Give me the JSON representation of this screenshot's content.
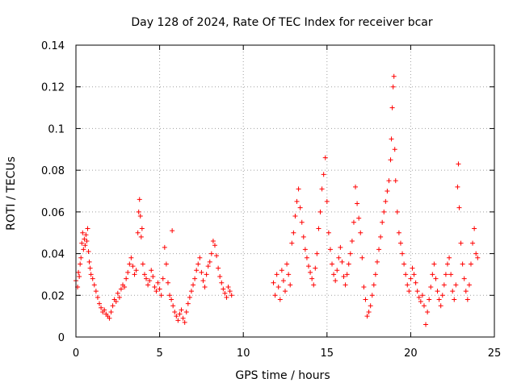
{
  "chart_data": {
    "type": "scatter",
    "title": "Day 128 of 2024, Rate Of TEC Index for receiver bcar",
    "xlabel": "GPS time / hours",
    "ylabel": "ROTI / TECUs",
    "xlim": [
      0,
      25
    ],
    "ylim": [
      0,
      0.14
    ],
    "xticks": [
      0,
      5,
      10,
      15,
      20,
      25
    ],
    "yticks": [
      0,
      0.02,
      0.04,
      0.06,
      0.08,
      0.1,
      0.12,
      0.14
    ],
    "ytick_labels": [
      "0",
      "0.02",
      "0.04",
      "0.06",
      "0.08",
      "0.1",
      "0.12",
      "0.14"
    ],
    "grid": true,
    "marker": "+",
    "marker_color": "#ff0000",
    "series": [
      {
        "name": "ROTI",
        "points": [
          [
            0.0,
            0.027
          ],
          [
            0.1,
            0.024
          ],
          [
            0.15,
            0.031
          ],
          [
            0.2,
            0.029
          ],
          [
            0.25,
            0.035
          ],
          [
            0.3,
            0.038
          ],
          [
            0.35,
            0.045
          ],
          [
            0.4,
            0.05
          ],
          [
            0.45,
            0.042
          ],
          [
            0.5,
            0.047
          ],
          [
            0.55,
            0.044
          ],
          [
            0.6,
            0.049
          ],
          [
            0.65,
            0.046
          ],
          [
            0.7,
            0.052
          ],
          [
            0.75,
            0.041
          ],
          [
            0.8,
            0.036
          ],
          [
            0.85,
            0.033
          ],
          [
            0.9,
            0.03
          ],
          [
            1.0,
            0.028
          ],
          [
            1.1,
            0.025
          ],
          [
            1.2,
            0.022
          ],
          [
            1.3,
            0.019
          ],
          [
            1.4,
            0.016
          ],
          [
            1.5,
            0.014
          ],
          [
            1.6,
            0.012
          ],
          [
            1.7,
            0.013
          ],
          [
            1.8,
            0.011
          ],
          [
            1.9,
            0.01
          ],
          [
            2.0,
            0.009
          ],
          [
            2.1,
            0.012
          ],
          [
            2.2,
            0.015
          ],
          [
            2.3,
            0.018
          ],
          [
            2.4,
            0.017
          ],
          [
            2.5,
            0.021
          ],
          [
            2.6,
            0.019
          ],
          [
            2.7,
            0.023
          ],
          [
            2.8,
            0.025
          ],
          [
            2.9,
            0.024
          ],
          [
            3.0,
            0.028
          ],
          [
            3.1,
            0.031
          ],
          [
            3.2,
            0.035
          ],
          [
            3.3,
            0.038
          ],
          [
            3.4,
            0.034
          ],
          [
            3.5,
            0.03
          ],
          [
            3.6,
            0.032
          ],
          [
            3.7,
            0.05
          ],
          [
            3.75,
            0.06
          ],
          [
            3.8,
            0.066
          ],
          [
            3.85,
            0.058
          ],
          [
            3.9,
            0.048
          ],
          [
            3.95,
            0.052
          ],
          [
            4.0,
            0.035
          ],
          [
            4.1,
            0.03
          ],
          [
            4.2,
            0.028
          ],
          [
            4.3,
            0.025
          ],
          [
            4.4,
            0.027
          ],
          [
            4.5,
            0.032
          ],
          [
            4.6,
            0.029
          ],
          [
            4.7,
            0.024
          ],
          [
            4.8,
            0.022
          ],
          [
            4.9,
            0.026
          ],
          [
            5.0,
            0.023
          ],
          [
            5.1,
            0.02
          ],
          [
            5.2,
            0.028
          ],
          [
            5.3,
            0.043
          ],
          [
            5.4,
            0.035
          ],
          [
            5.5,
            0.026
          ],
          [
            5.6,
            0.02
          ],
          [
            5.7,
            0.018
          ],
          [
            5.75,
            0.051
          ],
          [
            5.8,
            0.015
          ],
          [
            5.9,
            0.012
          ],
          [
            6.0,
            0.01
          ],
          [
            6.1,
            0.008
          ],
          [
            6.2,
            0.011
          ],
          [
            6.3,
            0.013
          ],
          [
            6.4,
            0.009
          ],
          [
            6.5,
            0.007
          ],
          [
            6.6,
            0.012
          ],
          [
            6.7,
            0.016
          ],
          [
            6.8,
            0.019
          ],
          [
            6.9,
            0.022
          ],
          [
            7.0,
            0.025
          ],
          [
            7.1,
            0.028
          ],
          [
            7.2,
            0.032
          ],
          [
            7.3,
            0.035
          ],
          [
            7.4,
            0.038
          ],
          [
            7.5,
            0.031
          ],
          [
            7.6,
            0.027
          ],
          [
            7.7,
            0.024
          ],
          [
            7.8,
            0.03
          ],
          [
            7.9,
            0.034
          ],
          [
            8.0,
            0.036
          ],
          [
            8.1,
            0.04
          ],
          [
            8.2,
            0.046
          ],
          [
            8.3,
            0.044
          ],
          [
            8.4,
            0.039
          ],
          [
            8.5,
            0.033
          ],
          [
            8.6,
            0.029
          ],
          [
            8.7,
            0.026
          ],
          [
            8.8,
            0.023
          ],
          [
            8.9,
            0.021
          ],
          [
            9.0,
            0.019
          ],
          [
            9.1,
            0.024
          ],
          [
            9.2,
            0.022
          ],
          [
            9.3,
            0.02
          ],
          [
            11.8,
            0.026
          ],
          [
            11.9,
            0.02
          ],
          [
            12.0,
            0.03
          ],
          [
            12.1,
            0.024
          ],
          [
            12.2,
            0.018
          ],
          [
            12.3,
            0.032
          ],
          [
            12.4,
            0.027
          ],
          [
            12.5,
            0.022
          ],
          [
            12.6,
            0.035
          ],
          [
            12.7,
            0.03
          ],
          [
            12.8,
            0.025
          ],
          [
            12.9,
            0.045
          ],
          [
            13.0,
            0.05
          ],
          [
            13.1,
            0.058
          ],
          [
            13.2,
            0.065
          ],
          [
            13.3,
            0.071
          ],
          [
            13.4,
            0.062
          ],
          [
            13.5,
            0.055
          ],
          [
            13.6,
            0.048
          ],
          [
            13.7,
            0.042
          ],
          [
            13.8,
            0.038
          ],
          [
            13.9,
            0.034
          ],
          [
            14.0,
            0.031
          ],
          [
            14.1,
            0.028
          ],
          [
            14.2,
            0.025
          ],
          [
            14.3,
            0.033
          ],
          [
            14.4,
            0.04
          ],
          [
            14.5,
            0.052
          ],
          [
            14.6,
            0.06
          ],
          [
            14.7,
            0.071
          ],
          [
            14.8,
            0.078
          ],
          [
            14.9,
            0.086
          ],
          [
            15.0,
            0.065
          ],
          [
            15.1,
            0.05
          ],
          [
            15.2,
            0.042
          ],
          [
            15.3,
            0.035
          ],
          [
            15.4,
            0.03
          ],
          [
            15.5,
            0.027
          ],
          [
            15.6,
            0.032
          ],
          [
            15.7,
            0.038
          ],
          [
            15.8,
            0.043
          ],
          [
            15.9,
            0.036
          ],
          [
            16.0,
            0.029
          ],
          [
            16.1,
            0.025
          ],
          [
            16.2,
            0.03
          ],
          [
            16.3,
            0.035
          ],
          [
            16.4,
            0.04
          ],
          [
            16.5,
            0.046
          ],
          [
            16.6,
            0.055
          ],
          [
            16.7,
            0.072
          ],
          [
            16.8,
            0.064
          ],
          [
            16.9,
            0.057
          ],
          [
            17.0,
            0.05
          ],
          [
            17.1,
            0.038
          ],
          [
            17.2,
            0.024
          ],
          [
            17.3,
            0.018
          ],
          [
            17.4,
            0.01
          ],
          [
            17.5,
            0.012
          ],
          [
            17.6,
            0.015
          ],
          [
            17.7,
            0.02
          ],
          [
            17.8,
            0.025
          ],
          [
            17.9,
            0.03
          ],
          [
            18.0,
            0.036
          ],
          [
            18.1,
            0.042
          ],
          [
            18.2,
            0.048
          ],
          [
            18.3,
            0.055
          ],
          [
            18.4,
            0.06
          ],
          [
            18.5,
            0.065
          ],
          [
            18.6,
            0.07
          ],
          [
            18.7,
            0.075
          ],
          [
            18.8,
            0.085
          ],
          [
            18.85,
            0.095
          ],
          [
            18.9,
            0.11
          ],
          [
            18.95,
            0.12
          ],
          [
            19.0,
            0.125
          ],
          [
            19.05,
            0.09
          ],
          [
            19.1,
            0.075
          ],
          [
            19.2,
            0.06
          ],
          [
            19.3,
            0.05
          ],
          [
            19.4,
            0.045
          ],
          [
            19.5,
            0.04
          ],
          [
            19.6,
            0.035
          ],
          [
            19.7,
            0.03
          ],
          [
            19.8,
            0.025
          ],
          [
            19.9,
            0.022
          ],
          [
            20.0,
            0.028
          ],
          [
            20.1,
            0.033
          ],
          [
            20.2,
            0.03
          ],
          [
            20.3,
            0.026
          ],
          [
            20.4,
            0.022
          ],
          [
            20.5,
            0.019
          ],
          [
            20.6,
            0.017
          ],
          [
            20.7,
            0.02
          ],
          [
            20.8,
            0.015
          ],
          [
            20.9,
            0.006
          ],
          [
            21.0,
            0.012
          ],
          [
            21.1,
            0.018
          ],
          [
            21.2,
            0.024
          ],
          [
            21.3,
            0.03
          ],
          [
            21.4,
            0.035
          ],
          [
            21.5,
            0.028
          ],
          [
            21.6,
            0.022
          ],
          [
            21.7,
            0.018
          ],
          [
            21.8,
            0.015
          ],
          [
            21.9,
            0.02
          ],
          [
            22.0,
            0.025
          ],
          [
            22.1,
            0.03
          ],
          [
            22.2,
            0.035
          ],
          [
            22.3,
            0.038
          ],
          [
            22.4,
            0.03
          ],
          [
            22.5,
            0.022
          ],
          [
            22.6,
            0.018
          ],
          [
            22.7,
            0.025
          ],
          [
            22.8,
            0.072
          ],
          [
            22.85,
            0.083
          ],
          [
            22.9,
            0.062
          ],
          [
            23.0,
            0.045
          ],
          [
            23.1,
            0.035
          ],
          [
            23.2,
            0.028
          ],
          [
            23.3,
            0.022
          ],
          [
            23.4,
            0.018
          ],
          [
            23.5,
            0.025
          ],
          [
            23.6,
            0.035
          ],
          [
            23.7,
            0.045
          ],
          [
            23.8,
            0.052
          ],
          [
            23.9,
            0.04
          ],
          [
            24.0,
            0.038
          ]
        ]
      }
    ]
  }
}
